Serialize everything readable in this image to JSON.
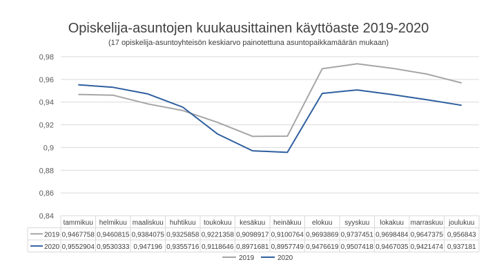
{
  "chart_data": {
    "type": "line",
    "title": "Opiskelija-asuntojen kuukausittainen käyttöaste 2019-2020",
    "subtitle": "(17 opiskelija-asuntoyhteisön keskiarvo painotettuna asuntopaikkamäärän mukaan)",
    "categories": [
      "tammikuu",
      "helmikuu",
      "maaliskuu",
      "huhtikuu",
      "toukokuu",
      "kesäkuu",
      "heinäkuu",
      "elokuu",
      "syyskuu",
      "lokakuu",
      "marraskuu",
      "joulukuu"
    ],
    "series": [
      {
        "name": "2019",
        "color": "#a5a5a5",
        "values": [
          0.9467758,
          0.9460815,
          0.9384075,
          0.9325858,
          0.9221358,
          0.9098917,
          0.9100764,
          0.9693869,
          0.9737451,
          0.9698484,
          0.9647375,
          0.956843
        ],
        "labels": [
          "0,9467758",
          "0,9460815",
          "0,9384075",
          "0,9325858",
          "0,9221358",
          "0,9098917",
          "0,9100764",
          "0,9693869",
          "0,9737451",
          "0,9698484",
          "0,9647375",
          "0,956843"
        ]
      },
      {
        "name": "2020",
        "color": "#2e5e9e",
        "values": [
          0.9552904,
          0.9530333,
          0.947196,
          0.9355716,
          0.9118646,
          0.8971681,
          0.8957749,
          0.9476619,
          0.9507418,
          0.9467035,
          0.9421474,
          0.937181
        ],
        "labels": [
          "0,9552904",
          "0,9530333",
          "0,947196",
          "0,9355716",
          "0,9118646",
          "0,8971681",
          "0,8957749",
          "0,9476619",
          "0,9507418",
          "0,9467035",
          "0,9421474",
          "0,937181"
        ]
      }
    ],
    "y_ticks": [
      "0,84",
      "0,86",
      "0,88",
      "0,9",
      "0,92",
      "0,94",
      "0,96",
      "0,98"
    ],
    "ylim": [
      0.84,
      0.98
    ],
    "grid": true,
    "legend": "bottom",
    "data_table": true
  }
}
